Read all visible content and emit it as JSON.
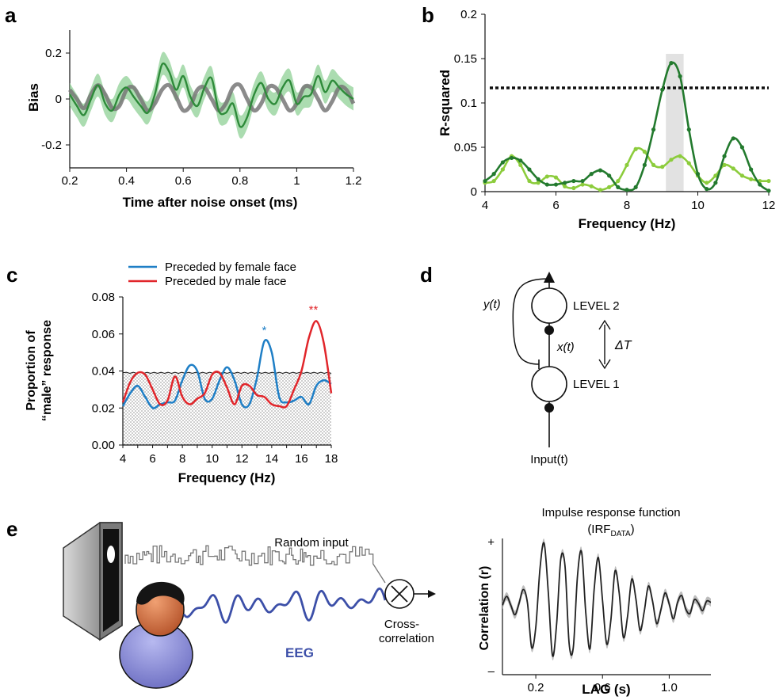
{
  "panels": {
    "a": {
      "label": "a",
      "chart_data": {
        "type": "line",
        "title": "",
        "xlabel": "Time after noise onset (ms)",
        "ylabel": "Bias",
        "xlim": [
          0.2,
          1.2
        ],
        "ylim": [
          -0.3,
          0.3
        ],
        "xticks": [
          "0.2",
          "0.4",
          "0.6",
          "0.8",
          "1",
          "1.2"
        ],
        "xtick_values": [
          0.2,
          0.4,
          0.6,
          0.8,
          1.0,
          1.2
        ],
        "yticks": [
          "-0.2",
          "0",
          "0.2"
        ],
        "ytick_values": [
          -0.2,
          0,
          0.2
        ],
        "series": [
          {
            "color": "#2e8b3a",
            "band_color": "#8fd095",
            "x": [
              0.2,
              0.225,
              0.25,
              0.275,
              0.3,
              0.325,
              0.35,
              0.375,
              0.4,
              0.425,
              0.45,
              0.475,
              0.5,
              0.525,
              0.55,
              0.575,
              0.6,
              0.625,
              0.65,
              0.675,
              0.7,
              0.725,
              0.75,
              0.775,
              0.8,
              0.825,
              0.85,
              0.875,
              0.9,
              0.925,
              0.95,
              0.975,
              1.0,
              1.025,
              1.05,
              1.075,
              1.1,
              1.125,
              1.15,
              1.175,
              1.2
            ],
            "y": [
              0.02,
              -0.03,
              -0.07,
              0.0,
              0.06,
              -0.02,
              -0.05,
              0.02,
              0.05,
              0.01,
              -0.03,
              -0.06,
              0.02,
              0.15,
              0.12,
              0.04,
              0.1,
              0.01,
              -0.03,
              0.05,
              0.09,
              -0.05,
              -0.06,
              -0.02,
              -0.12,
              -0.08,
              0.02,
              0.07,
              0.0,
              -0.02,
              0.05,
              0.08,
              -0.02,
              0.01,
              0.02,
              0.1,
              0.03,
              0.08,
              0.05,
              0.02,
              0.0
            ],
            "band": 0.05
          },
          {
            "color": "#777777",
            "type": "sinusoid",
            "x": [
              0.2,
              0.225,
              0.25,
              0.275,
              0.3,
              0.325,
              0.35,
              0.375,
              0.4,
              0.425,
              0.45,
              0.475,
              0.5,
              0.525,
              0.55,
              0.575,
              0.6,
              0.625,
              0.65,
              0.675,
              0.7,
              0.725,
              0.75,
              0.775,
              0.8,
              0.825,
              0.85,
              0.875,
              0.9,
              0.925,
              0.95,
              0.975,
              1.0,
              1.025,
              1.05,
              1.075,
              1.1,
              1.125,
              1.15,
              1.175,
              1.2
            ],
            "y": [
              0.04,
              0.0,
              -0.04,
              0.02,
              0.06,
              0.02,
              -0.04,
              -0.03,
              0.04,
              0.05,
              0.0,
              -0.05,
              -0.02,
              0.04,
              0.06,
              0.01,
              -0.05,
              -0.03,
              0.04,
              0.05,
              0.0,
              -0.05,
              -0.02,
              0.05,
              0.06,
              0.0,
              -0.05,
              -0.02,
              0.05,
              0.05,
              0.0,
              -0.05,
              -0.02,
              0.05,
              0.05,
              0.0,
              -0.05,
              -0.01,
              0.05,
              0.04,
              -0.02
            ]
          }
        ]
      }
    },
    "b": {
      "label": "b",
      "chart_data": {
        "type": "line",
        "title": "",
        "xlabel": "Frequency (Hz)",
        "ylabel": "R-squared",
        "xlim": [
          4,
          12
        ],
        "ylim": [
          0,
          0.2
        ],
        "xticks": [
          "4",
          "6",
          "8",
          "10",
          "12"
        ],
        "xtick_values": [
          4,
          6,
          8,
          10,
          12
        ],
        "yticks": [
          "0",
          "0.05",
          "0.1",
          "0.15",
          "0.2"
        ],
        "ytick_values": [
          0,
          0.05,
          0.1,
          0.15,
          0.2
        ],
        "threshold": 0.117,
        "shaded_range": [
          9.1,
          9.6
        ],
        "series": [
          {
            "color": "#237a2e",
            "x": [
              4.0,
              4.25,
              4.5,
              4.75,
              5.0,
              5.25,
              5.5,
              5.75,
              6.0,
              6.25,
              6.5,
              6.75,
              7.0,
              7.25,
              7.5,
              7.75,
              8.0,
              8.25,
              8.5,
              8.75,
              9.0,
              9.25,
              9.5,
              9.75,
              10.0,
              10.25,
              10.5,
              10.75,
              11.0,
              11.25,
              11.5,
              11.75,
              12.0
            ],
            "y": [
              0.012,
              0.02,
              0.033,
              0.038,
              0.035,
              0.025,
              0.014,
              0.008,
              0.008,
              0.01,
              0.012,
              0.012,
              0.02,
              0.024,
              0.018,
              0.005,
              0.002,
              0.005,
              0.03,
              0.07,
              0.115,
              0.145,
              0.13,
              0.07,
              0.02,
              0.003,
              0.01,
              0.04,
              0.06,
              0.05,
              0.025,
              0.008,
              0.001
            ]
          },
          {
            "color": "#8ccc3c",
            "x": [
              4.0,
              4.25,
              4.5,
              4.75,
              5.0,
              5.25,
              5.5,
              5.75,
              6.0,
              6.25,
              6.5,
              6.75,
              7.0,
              7.25,
              7.5,
              7.75,
              8.0,
              8.25,
              8.5,
              8.75,
              9.0,
              9.25,
              9.5,
              9.75,
              10.0,
              10.25,
              10.5,
              10.75,
              11.0,
              11.25,
              11.5,
              11.75,
              12.0
            ],
            "y": [
              0.01,
              0.012,
              0.025,
              0.04,
              0.03,
              0.012,
              0.01,
              0.017,
              0.016,
              0.006,
              0.004,
              0.008,
              0.006,
              0.002,
              0.005,
              0.012,
              0.03,
              0.048,
              0.045,
              0.03,
              0.028,
              0.036,
              0.04,
              0.032,
              0.018,
              0.01,
              0.018,
              0.03,
              0.026,
              0.018,
              0.014,
              0.012,
              0.012
            ]
          }
        ]
      }
    },
    "c": {
      "label": "c",
      "legend": [
        {
          "label": "Preceded by female face",
          "color": "#1f7fc6"
        },
        {
          "label": "Preceded by male face",
          "color": "#e1262b"
        }
      ],
      "chart_data": {
        "type": "line",
        "title": "",
        "xlabel": "Frequency (Hz)",
        "ylabel_line1": "Proportion of",
        "ylabel_line2": "“male” response",
        "xlim": [
          4,
          18
        ],
        "ylim": [
          0,
          0.08
        ],
        "xticks": [
          "4",
          "5",
          "6",
          "7",
          "8",
          "9",
          "10",
          "11",
          "12",
          "13",
          "14",
          "15",
          "16",
          "17",
          "18"
        ],
        "xtick_values": [
          4,
          5,
          6,
          7,
          8,
          9,
          10,
          11,
          12,
          13,
          14,
          15,
          16,
          17,
          18
        ],
        "yticks": [
          "0.00",
          "0.02",
          "0.04",
          "0.06",
          "0.08"
        ],
        "ytick_values": [
          0,
          0.02,
          0.04,
          0.06,
          0.08
        ],
        "null_level": 0.039,
        "annotations": [
          {
            "text": "*",
            "x": 13.5,
            "y": 0.06,
            "color": "#1f7fc6"
          },
          {
            "text": "**",
            "x": 16.8,
            "y": 0.071,
            "color": "#e1262b"
          }
        ],
        "series": [
          {
            "name": "Preceded by female face",
            "color": "#1f7fc6",
            "x": [
              4.0,
              4.5,
              5.0,
              5.5,
              6.0,
              6.5,
              7.0,
              7.5,
              8.0,
              8.5,
              9.0,
              9.5,
              10.0,
              10.5,
              11.0,
              11.5,
              12.0,
              12.5,
              13.0,
              13.5,
              14.0,
              14.5,
              15.0,
              15.5,
              16.0,
              16.5,
              17.0,
              17.5,
              18.0
            ],
            "y": [
              0.021,
              0.028,
              0.032,
              0.026,
              0.02,
              0.022,
              0.023,
              0.024,
              0.035,
              0.043,
              0.04,
              0.025,
              0.025,
              0.035,
              0.042,
              0.035,
              0.022,
              0.022,
              0.036,
              0.056,
              0.05,
              0.026,
              0.023,
              0.024,
              0.026,
              0.022,
              0.032,
              0.035,
              0.033
            ]
          },
          {
            "name": "Preceded by male face",
            "color": "#e1262b",
            "x": [
              4.0,
              4.5,
              5.0,
              5.5,
              6.0,
              6.5,
              7.0,
              7.5,
              8.0,
              8.5,
              9.0,
              9.5,
              10.0,
              10.5,
              11.0,
              11.5,
              12.0,
              12.5,
              13.0,
              13.5,
              14.0,
              14.5,
              15.0,
              15.5,
              16.0,
              16.5,
              17.0,
              17.5,
              18.0
            ],
            "y": [
              0.023,
              0.034,
              0.039,
              0.038,
              0.03,
              0.022,
              0.024,
              0.037,
              0.026,
              0.022,
              0.025,
              0.028,
              0.038,
              0.039,
              0.031,
              0.022,
              0.032,
              0.032,
              0.027,
              0.026,
              0.022,
              0.021,
              0.021,
              0.03,
              0.04,
              0.058,
              0.067,
              0.055,
              0.028
            ]
          }
        ]
      }
    },
    "d": {
      "label": "d",
      "y_label": "y(t)",
      "x_label": "x(t)",
      "delta_label": "ΔT",
      "level2": "LEVEL 2",
      "level1": "LEVEL 1",
      "input_label": "Input(t)"
    },
    "e": {
      "label": "e",
      "random_input": "Random input",
      "eeg": "EEG",
      "cross_line1": "Cross-",
      "cross_line2": "correlation",
      "irf_title_line1": "Impulse response function",
      "irf_title_base": "(IRF",
      "irf_title_sub": "DATA",
      "irf_title_end": ")",
      "colors": {
        "eeg": "#3c4fa8",
        "head": "#c8683d",
        "body": "#8d8fd8"
      },
      "chart_data": {
        "type": "line",
        "title": "",
        "xlabel": "LAG (s)",
        "ylabel": "Correlation (r)",
        "xlim": [
          0,
          1.25
        ],
        "ylim": [
          -1,
          1
        ],
        "xticks": [
          "0.2",
          "0.6",
          "1.0"
        ],
        "xtick_values": [
          0.2,
          0.6,
          1.0
        ],
        "yticks": [
          "+",
          "–"
        ],
        "ytick_values": [
          0.95,
          -0.95
        ],
        "series": [
          {
            "color": "#222222",
            "band_color": "#bdbdbd",
            "model": "damped_oscillation",
            "frequency_hz": 10.3,
            "peak_lag_s": 0.26,
            "x": [
              0.0,
              0.025,
              0.05,
              0.075,
              0.1,
              0.125,
              0.15,
              0.175,
              0.2,
              0.225,
              0.25,
              0.275,
              0.3,
              0.325,
              0.35,
              0.375,
              0.4,
              0.425,
              0.45,
              0.475,
              0.5,
              0.525,
              0.55,
              0.575,
              0.6,
              0.625,
              0.65,
              0.675,
              0.7,
              0.725,
              0.75,
              0.775,
              0.8,
              0.825,
              0.85,
              0.875,
              0.9,
              0.925,
              0.95,
              0.975,
              1.0,
              1.025,
              1.05,
              1.075,
              1.1,
              1.125,
              1.15,
              1.175,
              1.2,
              1.225,
              1.25
            ],
            "y": [
              0.02,
              0.15,
              0.02,
              -0.12,
              0.05,
              0.25,
              0.05,
              -0.6,
              -0.3,
              0.55,
              0.93,
              0.2,
              -0.72,
              -0.25,
              0.7,
              0.6,
              -0.55,
              -0.6,
              0.45,
              0.8,
              -0.1,
              -0.62,
              0.25,
              0.72,
              0.1,
              -0.55,
              -0.2,
              0.52,
              0.2,
              -0.45,
              -0.15,
              0.4,
              0.12,
              -0.35,
              -0.08,
              0.3,
              0.08,
              -0.25,
              -0.05,
              0.2,
              0.04,
              -0.18,
              0.06,
              0.16,
              -0.04,
              -0.1,
              0.1,
              0.05,
              -0.06,
              0.08,
              0.06
            ],
            "band": 0.06
          }
        ]
      }
    }
  }
}
